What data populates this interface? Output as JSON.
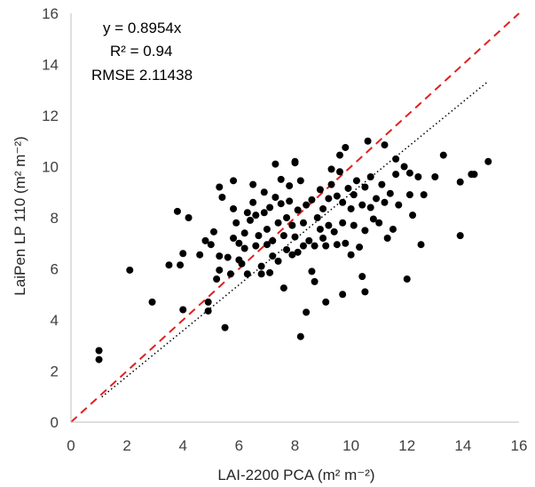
{
  "chart_data": {
    "type": "scatter",
    "title": "",
    "xlabel": "LAI-2200 PCA",
    "xlabel_unit": "(m² m⁻²)",
    "ylabel": "LaiPen LP 110",
    "ylabel_unit": "(m² m⁻²)",
    "xlim": [
      0,
      16
    ],
    "ylim": [
      0,
      16
    ],
    "x_ticks": [
      0,
      2,
      4,
      6,
      8,
      10,
      12,
      14,
      16
    ],
    "y_ticks": [
      0,
      2,
      4,
      6,
      8,
      10,
      12,
      14,
      16
    ],
    "grid": false,
    "annotations": {
      "equation": "y = 0.8954x",
      "r_squared": "R² = 0.94",
      "rmse": "RMSE 2.11438"
    },
    "reference_lines": [
      {
        "name": "1:1 line",
        "style": "dashed",
        "color": "#e02020",
        "x": [
          0,
          16
        ],
        "y": [
          0,
          16
        ]
      },
      {
        "name": "linear fit",
        "style": "dotted",
        "color": "#000000",
        "slope": 0.8954,
        "x_range": [
          1.1,
          14.9
        ]
      }
    ],
    "series": [
      {
        "name": "observations",
        "color": "#000000",
        "points": [
          [
            1.0,
            2.8
          ],
          [
            1.0,
            2.45
          ],
          [
            2.1,
            5.95
          ],
          [
            2.9,
            4.7
          ],
          [
            3.5,
            6.15
          ],
          [
            3.8,
            8.25
          ],
          [
            3.9,
            6.15
          ],
          [
            4.0,
            4.4
          ],
          [
            4.0,
            6.6
          ],
          [
            4.2,
            8.0
          ],
          [
            4.6,
            6.55
          ],
          [
            4.8,
            7.1
          ],
          [
            4.9,
            4.35
          ],
          [
            4.9,
            4.7
          ],
          [
            5.0,
            6.95
          ],
          [
            5.1,
            7.45
          ],
          [
            5.2,
            5.6
          ],
          [
            5.3,
            5.95
          ],
          [
            5.3,
            6.5
          ],
          [
            5.3,
            9.2
          ],
          [
            5.4,
            8.8
          ],
          [
            5.5,
            3.7
          ],
          [
            5.6,
            6.45
          ],
          [
            5.7,
            5.8
          ],
          [
            5.8,
            9.45
          ],
          [
            5.8,
            8.35
          ],
          [
            5.8,
            7.2
          ],
          [
            5.9,
            7.8
          ],
          [
            6.0,
            6.35
          ],
          [
            6.0,
            7.0
          ],
          [
            6.1,
            6.2
          ],
          [
            6.2,
            6.8
          ],
          [
            6.2,
            7.4
          ],
          [
            6.3,
            8.2
          ],
          [
            6.3,
            5.8
          ],
          [
            6.4,
            7.9
          ],
          [
            6.5,
            9.3
          ],
          [
            6.5,
            8.6
          ],
          [
            6.6,
            6.9
          ],
          [
            6.6,
            8.1
          ],
          [
            6.7,
            7.3
          ],
          [
            6.8,
            6.1
          ],
          [
            6.8,
            5.8
          ],
          [
            6.9,
            9.0
          ],
          [
            6.9,
            8.2
          ],
          [
            7.0,
            6.95
          ],
          [
            7.0,
            7.55
          ],
          [
            7.1,
            8.4
          ],
          [
            7.1,
            5.85
          ],
          [
            7.2,
            7.1
          ],
          [
            7.2,
            6.5
          ],
          [
            7.3,
            8.8
          ],
          [
            7.3,
            10.1
          ],
          [
            7.4,
            7.8
          ],
          [
            7.4,
            6.3
          ],
          [
            7.5,
            8.55
          ],
          [
            7.5,
            9.5
          ],
          [
            7.6,
            7.3
          ],
          [
            7.6,
            5.25
          ],
          [
            7.7,
            8.0
          ],
          [
            7.7,
            6.75
          ],
          [
            7.8,
            9.25
          ],
          [
            7.8,
            8.65
          ],
          [
            7.9,
            7.7
          ],
          [
            7.9,
            6.55
          ],
          [
            8.0,
            10.15
          ],
          [
            8.0,
            10.2
          ],
          [
            8.0,
            7.25
          ],
          [
            8.1,
            8.3
          ],
          [
            8.1,
            6.65
          ],
          [
            8.2,
            9.45
          ],
          [
            8.2,
            3.35
          ],
          [
            8.3,
            7.8
          ],
          [
            8.3,
            6.9
          ],
          [
            8.4,
            8.5
          ],
          [
            8.4,
            4.3
          ],
          [
            8.5,
            7.1
          ],
          [
            8.6,
            8.7
          ],
          [
            8.6,
            5.9
          ],
          [
            8.7,
            6.9
          ],
          [
            8.7,
            5.5
          ],
          [
            8.8,
            8.0
          ],
          [
            8.9,
            7.55
          ],
          [
            8.9,
            9.1
          ],
          [
            9.0,
            7.2
          ],
          [
            9.0,
            8.35
          ],
          [
            9.1,
            6.9
          ],
          [
            9.1,
            4.7
          ],
          [
            9.2,
            8.75
          ],
          [
            9.2,
            7.7
          ],
          [
            9.3,
            9.3
          ],
          [
            9.3,
            9.9
          ],
          [
            9.4,
            7.45
          ],
          [
            9.5,
            8.85
          ],
          [
            9.5,
            6.95
          ],
          [
            9.6,
            10.45
          ],
          [
            9.6,
            9.8
          ],
          [
            9.7,
            8.6
          ],
          [
            9.7,
            7.8
          ],
          [
            9.7,
            5.0
          ],
          [
            9.8,
            10.75
          ],
          [
            9.8,
            7.0
          ],
          [
            9.9,
            9.15
          ],
          [
            10.0,
            8.35
          ],
          [
            10.0,
            6.55
          ],
          [
            10.1,
            8.9
          ],
          [
            10.1,
            7.7
          ],
          [
            10.2,
            9.45
          ],
          [
            10.3,
            6.85
          ],
          [
            10.4,
            8.5
          ],
          [
            10.4,
            5.7
          ],
          [
            10.5,
            9.2
          ],
          [
            10.5,
            7.5
          ],
          [
            10.5,
            5.1
          ],
          [
            10.6,
            11.0
          ],
          [
            10.7,
            8.4
          ],
          [
            10.7,
            9.6
          ],
          [
            10.8,
            7.95
          ],
          [
            10.9,
            8.75
          ],
          [
            11.0,
            7.8
          ],
          [
            11.1,
            9.3
          ],
          [
            11.2,
            10.85
          ],
          [
            11.2,
            8.6
          ],
          [
            11.3,
            7.2
          ],
          [
            11.4,
            8.95
          ],
          [
            11.5,
            7.55
          ],
          [
            11.6,
            10.3
          ],
          [
            11.6,
            9.7
          ],
          [
            11.7,
            8.5
          ],
          [
            11.9,
            10.0
          ],
          [
            12.0,
            5.6
          ],
          [
            12.1,
            8.9
          ],
          [
            12.1,
            9.75
          ],
          [
            12.2,
            8.1
          ],
          [
            12.4,
            9.6
          ],
          [
            12.5,
            6.95
          ],
          [
            12.6,
            8.9
          ],
          [
            13.0,
            9.6
          ],
          [
            13.3,
            10.45
          ],
          [
            13.9,
            9.4
          ],
          [
            13.9,
            7.3
          ],
          [
            14.3,
            9.7
          ],
          [
            14.4,
            9.7
          ],
          [
            14.9,
            10.2
          ]
        ]
      }
    ]
  }
}
